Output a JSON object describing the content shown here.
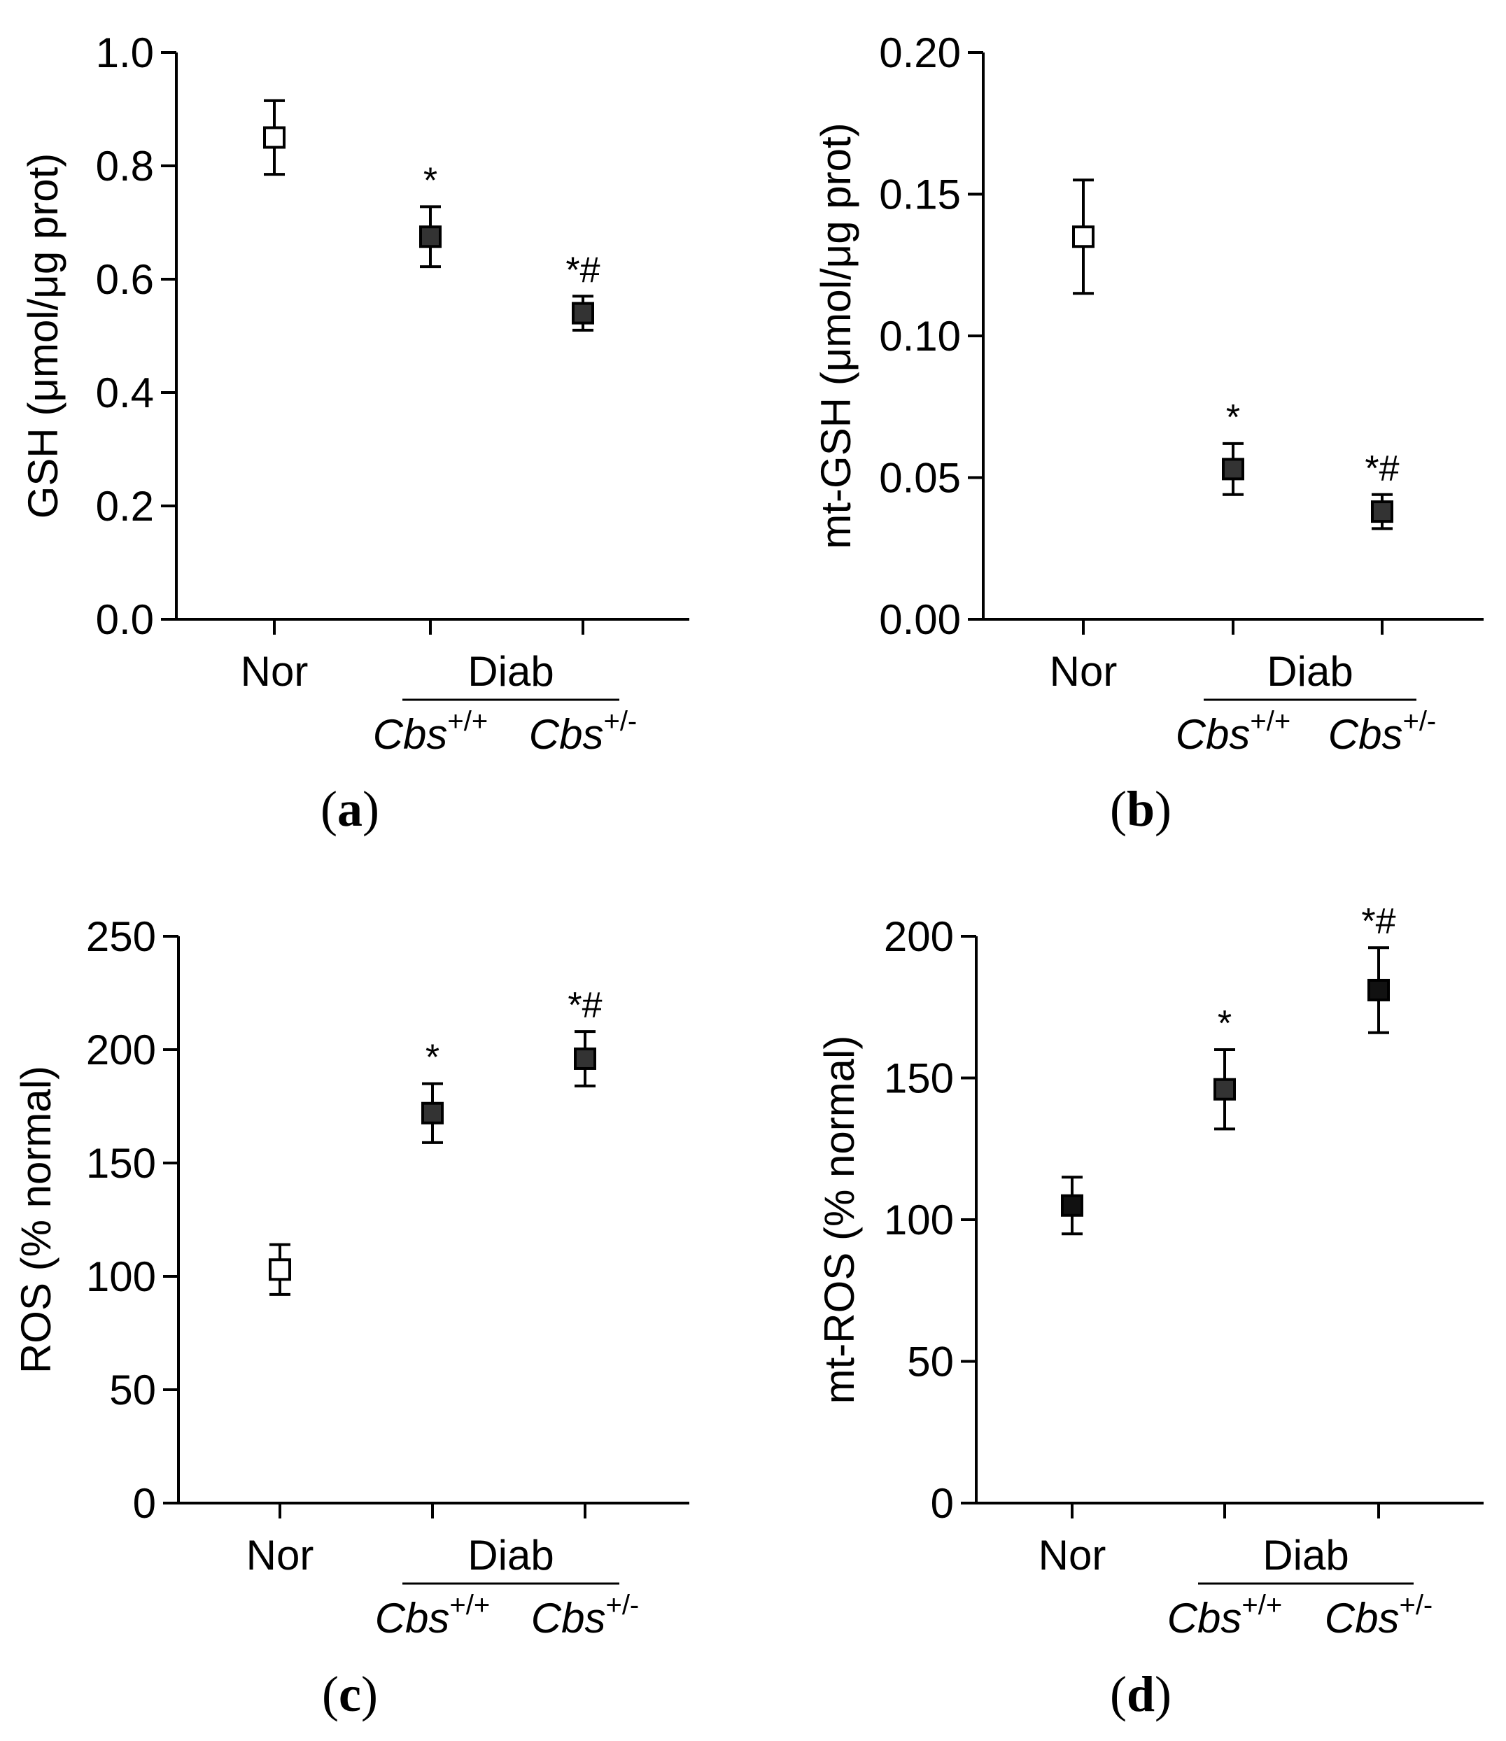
{
  "chart_data": [
    {
      "type": "scatter",
      "panel_label": "a",
      "ylabel": "GSH (μmol/μg prot)",
      "ylim": [
        0,
        1.0
      ],
      "yticks": [
        "0.0",
        "0.2",
        "0.4",
        "0.6",
        "0.8",
        "1.0"
      ],
      "categories": [
        "Nor",
        "Cbs+/+",
        "Cbs+/-"
      ],
      "group_label": "Diab",
      "cbs_tick": [
        {
          "base": "Cbs",
          "sup": "+/+"
        },
        {
          "base": "Cbs",
          "sup": "+/-"
        }
      ],
      "points": [
        {
          "category": "Nor",
          "value": 0.85,
          "error": 0.065,
          "fill": "#ffffff",
          "annotation": ""
        },
        {
          "category": "Cbs+/+",
          "value": 0.675,
          "error": 0.053,
          "fill": "#333333",
          "annotation": "*"
        },
        {
          "category": "Cbs+/-",
          "value": 0.54,
          "error": 0.03,
          "fill": "#333333",
          "annotation": "*#"
        }
      ]
    },
    {
      "type": "scatter",
      "panel_label": "b",
      "ylabel": "mt-GSH (μmol/μg prot)",
      "ylim": [
        0,
        0.2
      ],
      "yticks": [
        "0.00",
        "0.05",
        "0.10",
        "0.15",
        "0.20"
      ],
      "categories": [
        "Nor",
        "Cbs+/+",
        "Cbs+/-"
      ],
      "group_label": "Diab",
      "cbs_tick": [
        {
          "base": "Cbs",
          "sup": "+/+"
        },
        {
          "base": "Cbs",
          "sup": "+/-"
        }
      ],
      "points": [
        {
          "category": "Nor",
          "value": 0.135,
          "error": 0.02,
          "fill": "#ffffff",
          "annotation": ""
        },
        {
          "category": "Cbs+/+",
          "value": 0.053,
          "error": 0.009,
          "fill": "#333333",
          "annotation": "*"
        },
        {
          "category": "Cbs+/-",
          "value": 0.038,
          "error": 0.006,
          "fill": "#333333",
          "annotation": "*#"
        }
      ]
    },
    {
      "type": "scatter",
      "panel_label": "c",
      "ylabel": "ROS (% normal)",
      "ylim": [
        0,
        250
      ],
      "yticks": [
        "0",
        "50",
        "100",
        "150",
        "200",
        "250"
      ],
      "categories": [
        "Nor",
        "Cbs+/+",
        "Cbs+/-"
      ],
      "group_label": "Diab",
      "cbs_tick": [
        {
          "base": "Cbs",
          "sup": "+/+"
        },
        {
          "base": "Cbs",
          "sup": "+/-"
        }
      ],
      "points": [
        {
          "category": "Nor",
          "value": 103,
          "error": 11,
          "fill": "#ffffff",
          "annotation": ""
        },
        {
          "category": "Cbs+/+",
          "value": 172,
          "error": 13,
          "fill": "#333333",
          "annotation": "*"
        },
        {
          "category": "Cbs+/-",
          "value": 196,
          "error": 12,
          "fill": "#333333",
          "annotation": "*#"
        }
      ]
    },
    {
      "type": "scatter",
      "panel_label": "d",
      "ylabel": "mt-ROS (% normal)",
      "ylim": [
        0,
        200
      ],
      "yticks": [
        "0",
        "50",
        "100",
        "150",
        "200"
      ],
      "categories": [
        "Nor",
        "Cbs+/+",
        "Cbs+/-"
      ],
      "group_label": "Diab",
      "cbs_tick": [
        {
          "base": "Cbs",
          "sup": "+/+"
        },
        {
          "base": "Cbs",
          "sup": "+/-"
        }
      ],
      "points": [
        {
          "category": "Nor",
          "value": 105,
          "error": 10,
          "fill": "#111111",
          "annotation": ""
        },
        {
          "category": "Cbs+/+",
          "value": 146,
          "error": 14,
          "fill": "#333333",
          "annotation": "*"
        },
        {
          "category": "Cbs+/-",
          "value": 181,
          "error": 15,
          "fill": "#111111",
          "annotation": "*#"
        }
      ]
    }
  ]
}
